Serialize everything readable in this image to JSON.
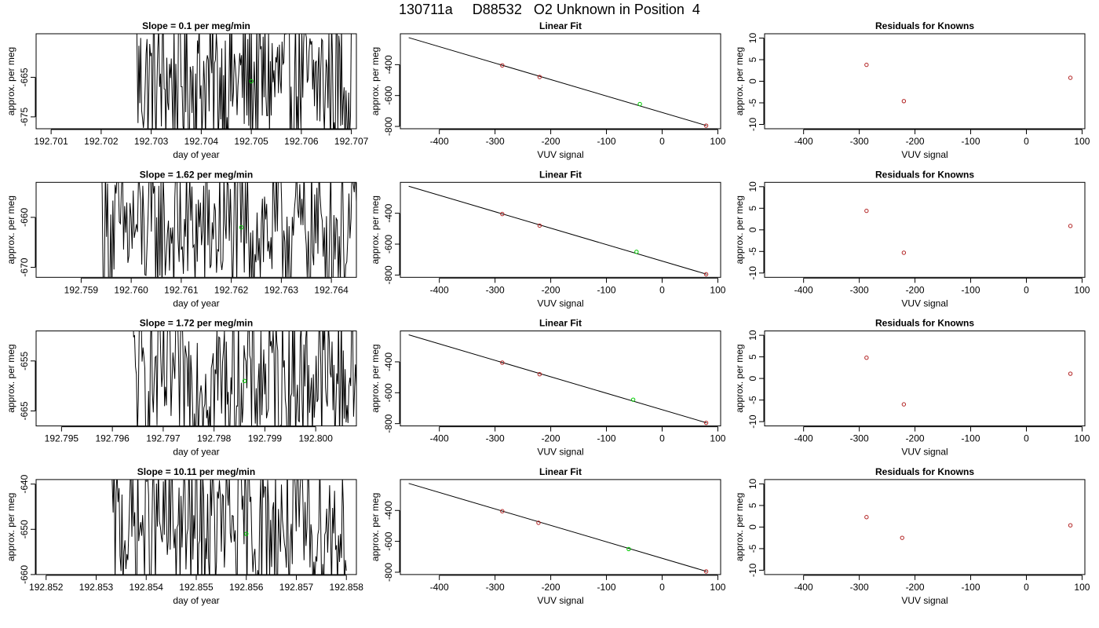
{
  "title": "130711a     D88532   O2 Unknown in Position  4",
  "colors": {
    "trace": "#000000",
    "known": "#b22222",
    "unknown": "#00cc00",
    "fit": "#000000"
  },
  "chart_data": [
    {
      "row": 1,
      "timeseries": {
        "type": "line",
        "title": "Slope =  0.1  per meg/min",
        "xlabel": "day of year",
        "ylabel": "approx. per meg",
        "xlim": [
          192.7007,
          192.7071
        ],
        "ylim": [
          -678,
          -654
        ],
        "xticks": [
          192.701,
          192.702,
          192.703,
          192.704,
          192.705,
          192.706,
          192.707
        ],
        "xtick_labels": [
          "192.701",
          "192.702",
          "192.703",
          "192.704",
          "192.705",
          "192.706",
          "192.707"
        ],
        "yticks": [
          -675,
          -665
        ],
        "ytick_labels": [
          "-675",
          "-665"
        ],
        "trace_start": 192.7027,
        "trace_end": 192.707,
        "mean_point": {
          "x": 192.705,
          "y": -666
        }
      },
      "fit": {
        "type": "scatter",
        "title": "Linear Fit",
        "xlabel": "VUV signal",
        "ylabel": "approx. per meg",
        "xlim": [
          -470,
          105
        ],
        "ylim": [
          -815,
          -200
        ],
        "xticks": [
          -400,
          -300,
          -200,
          -100,
          0,
          100
        ],
        "xtick_labels": [
          "-400",
          "-300",
          "-200",
          "-100",
          "0",
          "100"
        ],
        "yticks": [
          -800,
          -600,
          -400
        ],
        "ytick_labels": [
          "-800",
          "-600",
          "-400"
        ],
        "fit_line": {
          "x0": -455,
          "y0": -225,
          "x1": 80,
          "y1": -795
        },
        "knowns": [
          {
            "x": -287,
            "y": -405
          },
          {
            "x": -220,
            "y": -480
          },
          {
            "x": 79,
            "y": -795
          }
        ],
        "unknown": {
          "x": -40,
          "y": -655
        }
      },
      "residuals": {
        "type": "scatter",
        "title": "Residuals for Knowns",
        "xlabel": "VUV signal",
        "ylabel": "approx. per meg",
        "xlim": [
          -470,
          105
        ],
        "ylim": [
          -11,
          11
        ],
        "xticks": [
          -400,
          -300,
          -200,
          -100,
          0,
          100
        ],
        "xtick_labels": [
          "-400",
          "-300",
          "-200",
          "-100",
          "0",
          "100"
        ],
        "yticks": [
          -10,
          -5,
          0,
          5,
          10
        ],
        "ytick_labels": [
          "-10",
          "-5",
          "0",
          "5",
          "10"
        ],
        "points": [
          {
            "x": -287,
            "y": 3.8
          },
          {
            "x": -220,
            "y": -4.6
          },
          {
            "x": 79,
            "y": 0.8
          }
        ]
      }
    },
    {
      "row": 2,
      "timeseries": {
        "type": "line",
        "title": "Slope =  1.62  per meg/min",
        "xlabel": "day of year",
        "ylabel": "approx. per meg",
        "xlim": [
          192.7581,
          192.7645
        ],
        "ylim": [
          -672,
          -653
        ],
        "xticks": [
          192.759,
          192.76,
          192.761,
          192.762,
          192.763,
          192.764
        ],
        "xtick_labels": [
          "192.759",
          "192.760",
          "192.761",
          "192.762",
          "192.763",
          "192.764"
        ],
        "yticks": [
          -670,
          -660
        ],
        "ytick_labels": [
          "-670",
          "-660"
        ],
        "trace_start": 192.7594,
        "trace_end": 192.7645,
        "mean_point": {
          "x": 192.7622,
          "y": -662
        }
      },
      "fit": {
        "type": "scatter",
        "title": "Linear Fit",
        "xlabel": "VUV signal",
        "ylabel": "approx. per meg",
        "xlim": [
          -470,
          105
        ],
        "ylim": [
          -815,
          -200
        ],
        "xticks": [
          -400,
          -300,
          -200,
          -100,
          0,
          100
        ],
        "xtick_labels": [
          "-400",
          "-300",
          "-200",
          "-100",
          "0",
          "100"
        ],
        "yticks": [
          -800,
          -600,
          -400
        ],
        "ytick_labels": [
          "-800",
          "-600",
          "-400"
        ],
        "fit_line": {
          "x0": -455,
          "y0": -225,
          "x1": 80,
          "y1": -795
        },
        "knowns": [
          {
            "x": -287,
            "y": -405
          },
          {
            "x": -220,
            "y": -480
          },
          {
            "x": 79,
            "y": -795
          }
        ],
        "unknown": {
          "x": -46,
          "y": -650
        }
      },
      "residuals": {
        "type": "scatter",
        "title": "Residuals for Knowns",
        "xlabel": "VUV signal",
        "ylabel": "approx. per meg",
        "xlim": [
          -470,
          105
        ],
        "ylim": [
          -11,
          11
        ],
        "xticks": [
          -400,
          -300,
          -200,
          -100,
          0,
          100
        ],
        "xtick_labels": [
          "-400",
          "-300",
          "-200",
          "-100",
          "0",
          "100"
        ],
        "yticks": [
          -10,
          -5,
          0,
          5,
          10
        ],
        "ytick_labels": [
          "-10",
          "-5",
          "0",
          "5",
          "10"
        ],
        "points": [
          {
            "x": -287,
            "y": 4.4
          },
          {
            "x": -220,
            "y": -5.3
          },
          {
            "x": 79,
            "y": 0.9
          }
        ]
      }
    },
    {
      "row": 3,
      "timeseries": {
        "type": "line",
        "title": "Slope =  1.72  per meg/min",
        "xlabel": "day of year",
        "ylabel": "approx. per meg",
        "xlim": [
          192.7945,
          192.8008
        ],
        "ylim": [
          -668,
          -649
        ],
        "xticks": [
          192.795,
          192.796,
          192.797,
          192.798,
          192.799,
          192.8
        ],
        "xtick_labels": [
          "192.795",
          "192.796",
          "192.797",
          "192.798",
          "192.799",
          "192.800"
        ],
        "yticks": [
          -665,
          -655
        ],
        "ytick_labels": [
          "-665",
          "-655"
        ],
        "trace_start": 192.7964,
        "trace_end": 192.8008,
        "mean_point": {
          "x": 192.7986,
          "y": -659
        }
      },
      "fit": {
        "type": "scatter",
        "title": "Linear Fit",
        "xlabel": "VUV signal",
        "ylabel": "approx. per meg",
        "xlim": [
          -470,
          105
        ],
        "ylim": [
          -815,
          -200
        ],
        "xticks": [
          -400,
          -300,
          -200,
          -100,
          0,
          100
        ],
        "xtick_labels": [
          "-400",
          "-300",
          "-200",
          "-100",
          "0",
          "100"
        ],
        "yticks": [
          -800,
          -600,
          -400
        ],
        "ytick_labels": [
          "-800",
          "-600",
          "-400"
        ],
        "fit_line": {
          "x0": -455,
          "y0": -225,
          "x1": 80,
          "y1": -795
        },
        "knowns": [
          {
            "x": -287,
            "y": -405
          },
          {
            "x": -220,
            "y": -480
          },
          {
            "x": 79,
            "y": -795
          }
        ],
        "unknown": {
          "x": -52,
          "y": -645
        }
      },
      "residuals": {
        "type": "scatter",
        "title": "Residuals for Knowns",
        "xlabel": "VUV signal",
        "ylabel": "approx. per meg",
        "xlim": [
          -470,
          105
        ],
        "ylim": [
          -11,
          11
        ],
        "xticks": [
          -400,
          -300,
          -200,
          -100,
          0,
          100
        ],
        "xtick_labels": [
          "-400",
          "-300",
          "-200",
          "-100",
          "0",
          "100"
        ],
        "yticks": [
          -10,
          -5,
          0,
          5,
          10
        ],
        "ytick_labels": [
          "-10",
          "-5",
          "0",
          "5",
          "10"
        ],
        "points": [
          {
            "x": -287,
            "y": 4.8
          },
          {
            "x": -220,
            "y": -6.0
          },
          {
            "x": 79,
            "y": 1.1
          }
        ]
      }
    },
    {
      "row": 4,
      "timeseries": {
        "type": "line",
        "title": "Slope =  10.11  per meg/min",
        "xlabel": "day of year",
        "ylabel": "approx. per meg",
        "xlim": [
          192.8518,
          192.8582
        ],
        "ylim": [
          -660,
          -639
        ],
        "xticks": [
          192.852,
          192.853,
          192.854,
          192.855,
          192.856,
          192.857,
          192.858
        ],
        "xtick_labels": [
          "192.852",
          "192.853",
          "192.854",
          "192.855",
          "192.856",
          "192.857",
          "192.858"
        ],
        "yticks": [
          -660,
          -650,
          -640
        ],
        "ytick_labels": [
          "-660",
          "-650",
          "-640"
        ],
        "trace_start": 192.8533,
        "trace_end": 192.858,
        "mean_point": {
          "x": 192.856,
          "y": -651
        }
      },
      "fit": {
        "type": "scatter",
        "title": "Linear Fit",
        "xlabel": "VUV signal",
        "ylabel": "approx. per meg",
        "xlim": [
          -470,
          105
        ],
        "ylim": [
          -815,
          -200
        ],
        "xticks": [
          -400,
          -300,
          -200,
          -100,
          0,
          100
        ],
        "xtick_labels": [
          "-400",
          "-300",
          "-200",
          "-100",
          "0",
          "100"
        ],
        "yticks": [
          -800,
          -600,
          -400
        ],
        "ytick_labels": [
          "-800",
          "-600",
          "-400"
        ],
        "fit_line": {
          "x0": -455,
          "y0": -225,
          "x1": 80,
          "y1": -795
        },
        "knowns": [
          {
            "x": -287,
            "y": -405
          },
          {
            "x": -222,
            "y": -480
          },
          {
            "x": 79,
            "y": -795
          }
        ],
        "unknown": {
          "x": -60,
          "y": -650
        }
      },
      "residuals": {
        "type": "scatter",
        "title": "Residuals for Knowns",
        "xlabel": "VUV signal",
        "ylabel": "approx. per meg",
        "xlim": [
          -470,
          105
        ],
        "ylim": [
          -11,
          11
        ],
        "xticks": [
          -400,
          -300,
          -200,
          -100,
          0,
          100
        ],
        "xtick_labels": [
          "-400",
          "-300",
          "-200",
          "-100",
          "0",
          "100"
        ],
        "yticks": [
          -10,
          -5,
          0,
          5,
          10
        ],
        "ytick_labels": [
          "-10",
          "-5",
          "0",
          "5",
          "10"
        ],
        "points": [
          {
            "x": -287,
            "y": 2.3
          },
          {
            "x": -223,
            "y": -2.5
          },
          {
            "x": 79,
            "y": 0.4
          }
        ]
      }
    }
  ]
}
